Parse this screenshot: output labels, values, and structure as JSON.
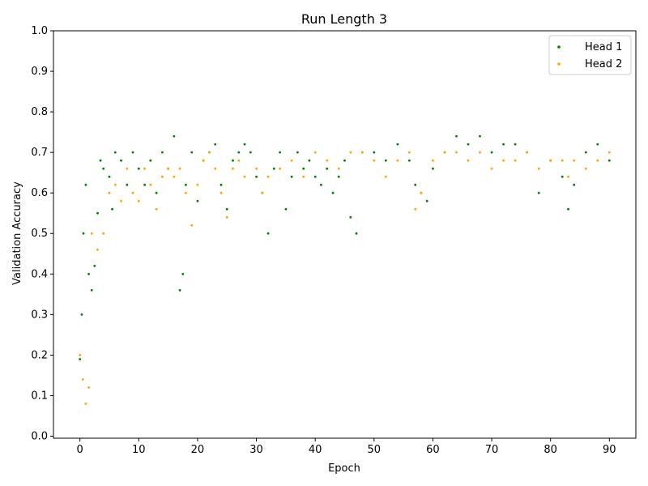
{
  "chart_data": {
    "type": "scatter",
    "title": "Run Length 3",
    "xlabel": "Epoch",
    "ylabel": "Validation Accuracy",
    "xlim": [
      -4.5,
      94.5
    ],
    "ylim": [
      -0.005,
      1.0
    ],
    "xticks": [
      0,
      10,
      20,
      30,
      40,
      50,
      60,
      70,
      80,
      90
    ],
    "yticks": [
      0.0,
      0.1,
      0.2,
      0.3,
      0.4,
      0.5,
      0.6,
      0.7,
      0.8,
      0.9,
      1.0
    ],
    "grid": false,
    "legend_position": "top-right",
    "series": [
      {
        "name": "Head 1",
        "color": "#008000",
        "points": [
          [
            0,
            0.19
          ],
          [
            0.3,
            0.3
          ],
          [
            0.6,
            0.5
          ],
          [
            1,
            0.62
          ],
          [
            1.5,
            0.4
          ],
          [
            2,
            0.36
          ],
          [
            2.5,
            0.42
          ],
          [
            3,
            0.55
          ],
          [
            3.5,
            0.68
          ],
          [
            4,
            0.66
          ],
          [
            5,
            0.64
          ],
          [
            5.5,
            0.56
          ],
          [
            6,
            0.7
          ],
          [
            7,
            0.68
          ],
          [
            8,
            0.62
          ],
          [
            9,
            0.7
          ],
          [
            10,
            0.66
          ],
          [
            11,
            0.62
          ],
          [
            12,
            0.68
          ],
          [
            13,
            0.6
          ],
          [
            14,
            0.7
          ],
          [
            15,
            0.66
          ],
          [
            16,
            0.74
          ],
          [
            17,
            0.36
          ],
          [
            17.5,
            0.4
          ],
          [
            18,
            0.62
          ],
          [
            19,
            0.7
          ],
          [
            20,
            0.58
          ],
          [
            21,
            0.68
          ],
          [
            22,
            0.7
          ],
          [
            23,
            0.72
          ],
          [
            24,
            0.62
          ],
          [
            25,
            0.56
          ],
          [
            26,
            0.68
          ],
          [
            27,
            0.7
          ],
          [
            28,
            0.72
          ],
          [
            29,
            0.7
          ],
          [
            30,
            0.64
          ],
          [
            31,
            0.6
          ],
          [
            32,
            0.5
          ],
          [
            33,
            0.66
          ],
          [
            34,
            0.7
          ],
          [
            35,
            0.56
          ],
          [
            36,
            0.64
          ],
          [
            37,
            0.7
          ],
          [
            38,
            0.66
          ],
          [
            39,
            0.68
          ],
          [
            40,
            0.64
          ],
          [
            41,
            0.62
          ],
          [
            42,
            0.66
          ],
          [
            43,
            0.6
          ],
          [
            44,
            0.64
          ],
          [
            45,
            0.68
          ],
          [
            46,
            0.54
          ],
          [
            47,
            0.5
          ],
          [
            48,
            0.7
          ],
          [
            50,
            0.7
          ],
          [
            52,
            0.68
          ],
          [
            54,
            0.72
          ],
          [
            56,
            0.68
          ],
          [
            57,
            0.62
          ],
          [
            58,
            0.6
          ],
          [
            59,
            0.58
          ],
          [
            60,
            0.66
          ],
          [
            62,
            0.7
          ],
          [
            64,
            0.74
          ],
          [
            66,
            0.72
          ],
          [
            68,
            0.74
          ],
          [
            70,
            0.7
          ],
          [
            72,
            0.72
          ],
          [
            74,
            0.72
          ],
          [
            76,
            0.7
          ],
          [
            78,
            0.6
          ],
          [
            80,
            0.68
          ],
          [
            82,
            0.64
          ],
          [
            83,
            0.56
          ],
          [
            84,
            0.62
          ],
          [
            86,
            0.7
          ],
          [
            88,
            0.72
          ],
          [
            90,
            0.68
          ]
        ]
      },
      {
        "name": "Head 2",
        "color": "#ffa500",
        "points": [
          [
            0,
            0.2
          ],
          [
            0.5,
            0.14
          ],
          [
            1,
            0.08
          ],
          [
            1.5,
            0.12
          ],
          [
            2,
            0.5
          ],
          [
            3,
            0.46
          ],
          [
            4,
            0.5
          ],
          [
            5,
            0.6
          ],
          [
            6,
            0.62
          ],
          [
            7,
            0.58
          ],
          [
            8,
            0.66
          ],
          [
            9,
            0.6
          ],
          [
            10,
            0.58
          ],
          [
            11,
            0.66
          ],
          [
            12,
            0.62
          ],
          [
            13,
            0.56
          ],
          [
            14,
            0.64
          ],
          [
            15,
            0.66
          ],
          [
            16,
            0.64
          ],
          [
            17,
            0.66
          ],
          [
            18,
            0.6
          ],
          [
            19,
            0.52
          ],
          [
            20,
            0.62
          ],
          [
            21,
            0.68
          ],
          [
            22,
            0.7
          ],
          [
            23,
            0.66
          ],
          [
            24,
            0.6
          ],
          [
            25,
            0.54
          ],
          [
            26,
            0.66
          ],
          [
            27,
            0.68
          ],
          [
            28,
            0.64
          ],
          [
            30,
            0.66
          ],
          [
            31,
            0.6
          ],
          [
            32,
            0.64
          ],
          [
            34,
            0.66
          ],
          [
            36,
            0.68
          ],
          [
            38,
            0.64
          ],
          [
            40,
            0.7
          ],
          [
            42,
            0.68
          ],
          [
            44,
            0.66
          ],
          [
            46,
            0.7
          ],
          [
            48,
            0.7
          ],
          [
            50,
            0.68
          ],
          [
            52,
            0.64
          ],
          [
            54,
            0.68
          ],
          [
            56,
            0.7
          ],
          [
            57,
            0.56
          ],
          [
            58,
            0.6
          ],
          [
            60,
            0.68
          ],
          [
            62,
            0.7
          ],
          [
            64,
            0.7
          ],
          [
            66,
            0.68
          ],
          [
            68,
            0.7
          ],
          [
            70,
            0.66
          ],
          [
            72,
            0.68
          ],
          [
            74,
            0.68
          ],
          [
            76,
            0.7
          ],
          [
            78,
            0.66
          ],
          [
            80,
            0.68
          ],
          [
            82,
            0.68
          ],
          [
            83,
            0.64
          ],
          [
            84,
            0.68
          ],
          [
            86,
            0.66
          ],
          [
            88,
            0.68
          ],
          [
            90,
            0.7
          ]
        ]
      }
    ]
  }
}
